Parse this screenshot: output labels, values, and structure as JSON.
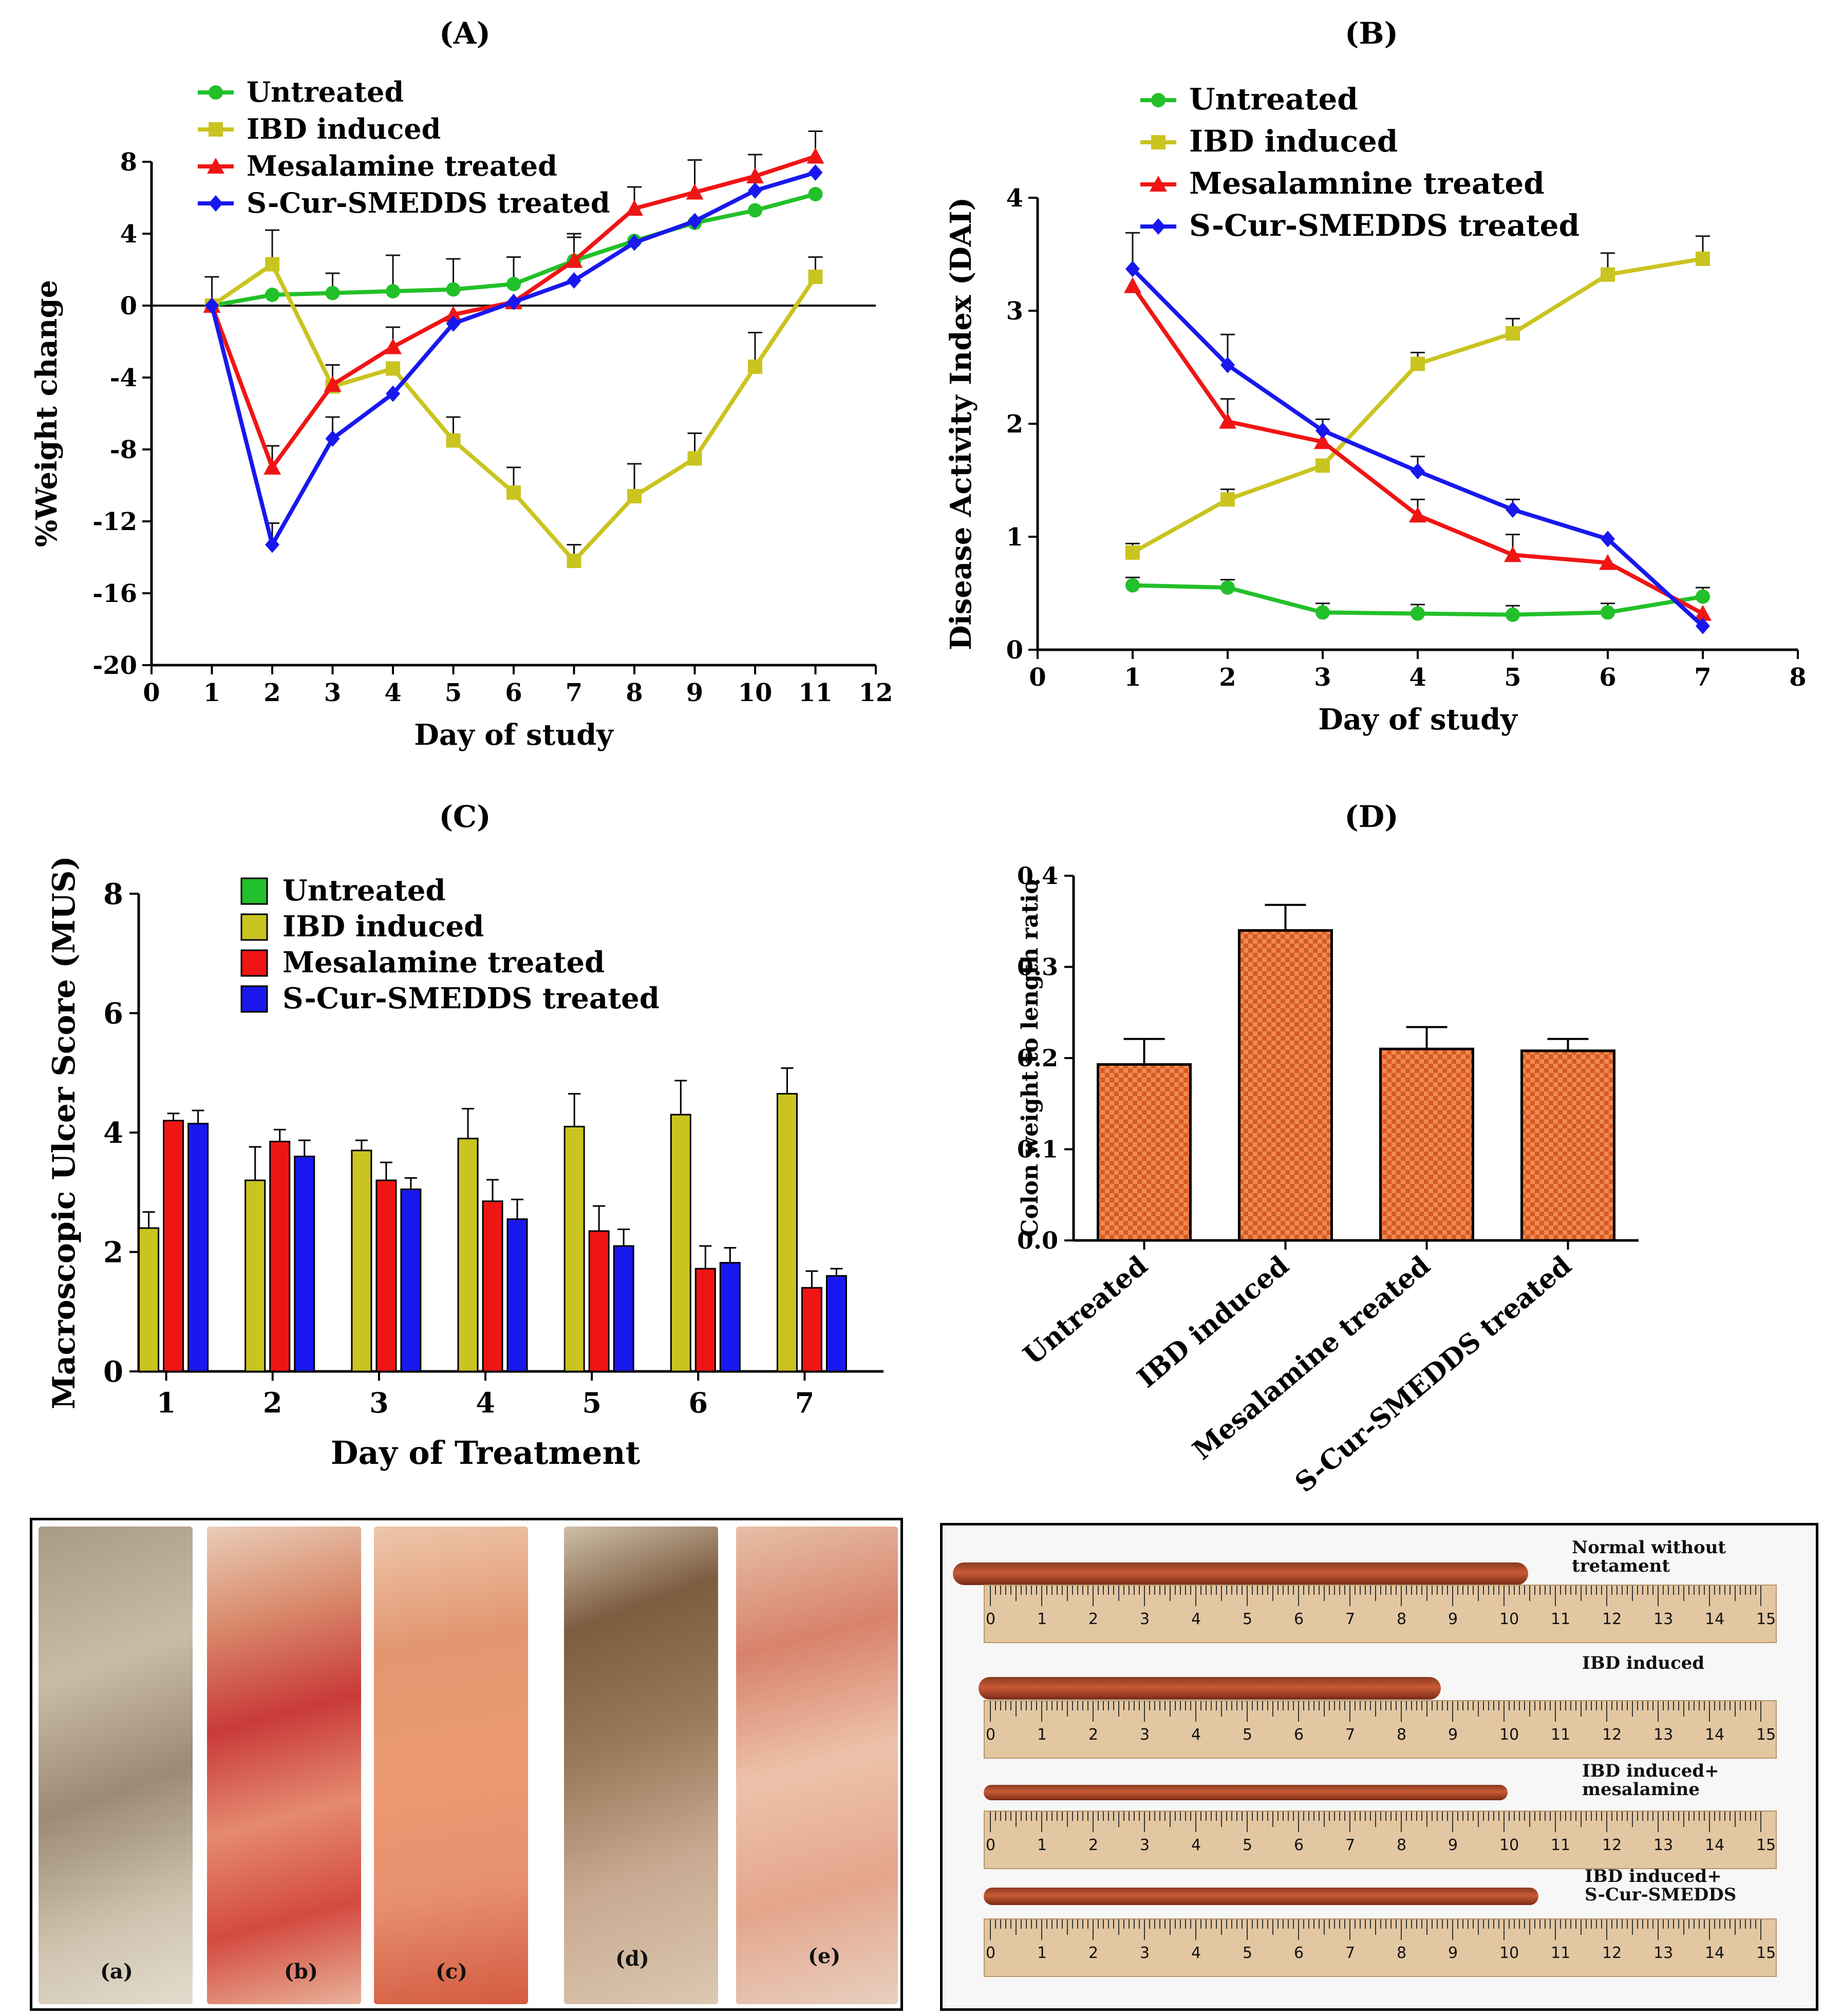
{
  "colors": {
    "untreated": "#22c02a",
    "ibd": "#c9c420",
    "mesalamine": "#f01515",
    "scur": "#1818ee",
    "bar_d": "#ee8a55"
  },
  "chart_data": [
    {
      "id": "A",
      "panel_label": "(A)",
      "type": "line",
      "xlabel": "Day of study",
      "ylabel": "%Weight change",
      "xlim": [
        0,
        12
      ],
      "ylim": [
        -20,
        8
      ],
      "xticks": [
        0,
        1,
        2,
        3,
        4,
        5,
        6,
        7,
        8,
        9,
        10,
        11,
        12
      ],
      "yticks": [
        -20,
        -16,
        -12,
        -8,
        -4,
        0,
        4,
        8
      ],
      "x": [
        1,
        2,
        3,
        4,
        5,
        6,
        7,
        8,
        9,
        10,
        11
      ],
      "series": [
        {
          "name": "Untreated",
          "marker": "circle",
          "color_key": "untreated",
          "values": [
            0,
            0.6,
            0.7,
            0.8,
            0.9,
            1.2,
            2.5,
            3.6,
            4.6,
            5.3,
            6.2
          ],
          "errors": [
            1.6,
            0,
            1.1,
            2.0,
            1.7,
            1.5,
            1.3,
            0,
            0,
            0,
            0
          ]
        },
        {
          "name": "IBD induced",
          "marker": "square",
          "color_key": "ibd",
          "values": [
            0,
            2.3,
            -4.5,
            -3.5,
            -7.5,
            -10.4,
            -14.2,
            -10.6,
            -8.5,
            -3.4,
            1.6
          ],
          "errors": [
            0,
            1.9,
            0,
            0,
            1.3,
            1.4,
            0.9,
            1.8,
            1.4,
            1.9,
            1.1
          ]
        },
        {
          "name": "Mesalamine treated",
          "marker": "triangle",
          "color_key": "mesalamine",
          "values": [
            0,
            -9.0,
            -4.4,
            -2.3,
            -0.5,
            0.2,
            2.5,
            5.4,
            6.3,
            7.2,
            8.3
          ],
          "errors": [
            0,
            1.2,
            1.1,
            1.1,
            0,
            0,
            1.5,
            1.2,
            1.8,
            1.2,
            1.4
          ]
        },
        {
          "name": "S-Cur-SMEDDS treated",
          "marker": "diamond",
          "color_key": "scur",
          "values": [
            0,
            -13.3,
            -7.4,
            -4.9,
            -1.0,
            0.2,
            1.4,
            3.5,
            4.7,
            6.4,
            7.4
          ],
          "errors": [
            0,
            1.2,
            1.2,
            0,
            0,
            0,
            0,
            0,
            0,
            0,
            0
          ]
        }
      ]
    },
    {
      "id": "B",
      "panel_label": "(B)",
      "type": "line",
      "xlabel": "Day of study",
      "ylabel": "Disease Activity Index (DAI)",
      "xlim": [
        0,
        8
      ],
      "ylim": [
        0,
        4
      ],
      "xticks": [
        0,
        1,
        2,
        3,
        4,
        5,
        6,
        7,
        8
      ],
      "yticks": [
        0,
        1,
        2,
        3,
        4
      ],
      "x": [
        1,
        2,
        3,
        4,
        5,
        6,
        7
      ],
      "series": [
        {
          "name": "Untreated",
          "marker": "circle",
          "color_key": "untreated",
          "values": [
            0.57,
            0.55,
            0.33,
            0.32,
            0.31,
            0.33,
            0.47
          ],
          "errors": [
            0.07,
            0.07,
            0.08,
            0.08,
            0.08,
            0.08,
            0.08
          ]
        },
        {
          "name": "IBD induced",
          "marker": "square",
          "color_key": "ibd",
          "values": [
            0.86,
            1.33,
            1.63,
            2.53,
            2.8,
            3.32,
            3.46
          ],
          "errors": [
            0.08,
            0.09,
            0,
            0.1,
            0.13,
            0.19,
            0.2
          ]
        },
        {
          "name": "Mesalamnine treated",
          "marker": "triangle",
          "color_key": "mesalamine",
          "values": [
            3.22,
            2.02,
            1.84,
            1.19,
            0.84,
            0.77,
            0.32
          ],
          "errors": [
            0,
            0.2,
            0,
            0.14,
            0.18,
            0,
            0
          ]
        },
        {
          "name": "S-Cur-SMEDDS treated",
          "marker": "diamond",
          "color_key": "scur",
          "values": [
            3.37,
            2.52,
            1.94,
            1.58,
            1.24,
            0.98,
            0.21
          ],
          "errors": [
            0.32,
            0.27,
            0.1,
            0.13,
            0.09,
            0,
            0
          ]
        }
      ]
    },
    {
      "id": "C",
      "panel_label": "(C)",
      "type": "bar",
      "xlabel": "Day of Treatment",
      "ylabel": "Macroscopic Ulcer Score (MUS)",
      "ylim": [
        0,
        8
      ],
      "yticks": [
        0,
        2,
        4,
        6,
        8
      ],
      "categories": [
        "1",
        "2",
        "3",
        "4",
        "5",
        "6",
        "7"
      ],
      "series": [
        {
          "name": "Untreated",
          "color_key": "untreated",
          "values": [
            0,
            0,
            0,
            0,
            0,
            0,
            0
          ],
          "errors": [
            0,
            0,
            0,
            0,
            0,
            0,
            0
          ]
        },
        {
          "name": "IBD induced",
          "color_key": "ibd",
          "values": [
            2.4,
            3.2,
            3.7,
            3.9,
            4.1,
            4.3,
            4.65
          ],
          "errors": [
            0.27,
            0.56,
            0.17,
            0.5,
            0.55,
            0.57,
            0.43
          ]
        },
        {
          "name": "Mesalamine treated",
          "color_key": "mesalamine",
          "values": [
            4.2,
            3.85,
            3.2,
            2.85,
            2.35,
            1.72,
            1.4
          ],
          "errors": [
            0.12,
            0.2,
            0.3,
            0.36,
            0.42,
            0.38,
            0.28
          ]
        },
        {
          "name": "S-Cur-SMEDDS treated",
          "color_key": "scur",
          "values": [
            4.15,
            3.6,
            3.05,
            2.55,
            2.1,
            1.82,
            1.6
          ],
          "errors": [
            0.22,
            0.27,
            0.19,
            0.33,
            0.28,
            0.25,
            0.12
          ]
        }
      ]
    },
    {
      "id": "D",
      "panel_label": "(D)",
      "type": "bar",
      "xlabel": "",
      "ylabel": "Colon weight to length ratio",
      "ylim": [
        0,
        0.4
      ],
      "yticks": [
        "0.0",
        "0.1",
        "0.2",
        "0.3",
        "0.4"
      ],
      "categories": [
        "Untreated",
        "IBD induced",
        "Mesalamine treated",
        "S-Cur-SMEDDS treated"
      ],
      "values": [
        0.193,
        0.34,
        0.21,
        0.208
      ],
      "errors": [
        0.028,
        0.028,
        0.024,
        0.013
      ]
    }
  ],
  "photos": {
    "labels": [
      "(a)",
      "(b)",
      "(c)",
      "(d)",
      "(e)"
    ]
  },
  "colon_panel": {
    "ruler_numbers": [
      "0",
      "1",
      "2",
      "3",
      "4",
      "5",
      "6",
      "7",
      "8",
      "9",
      "10",
      "11",
      "12",
      "13",
      "14",
      "15"
    ],
    "conditions": [
      {
        "line1": "Normal without",
        "line2": "tretament"
      },
      {
        "line1": "IBD induced",
        "line2": ""
      },
      {
        "line1": "IBD induced+",
        "line2": "mesalamine"
      },
      {
        "line1": "IBD induced+",
        "line2": "S-Cur-SMEDDS"
      }
    ]
  }
}
